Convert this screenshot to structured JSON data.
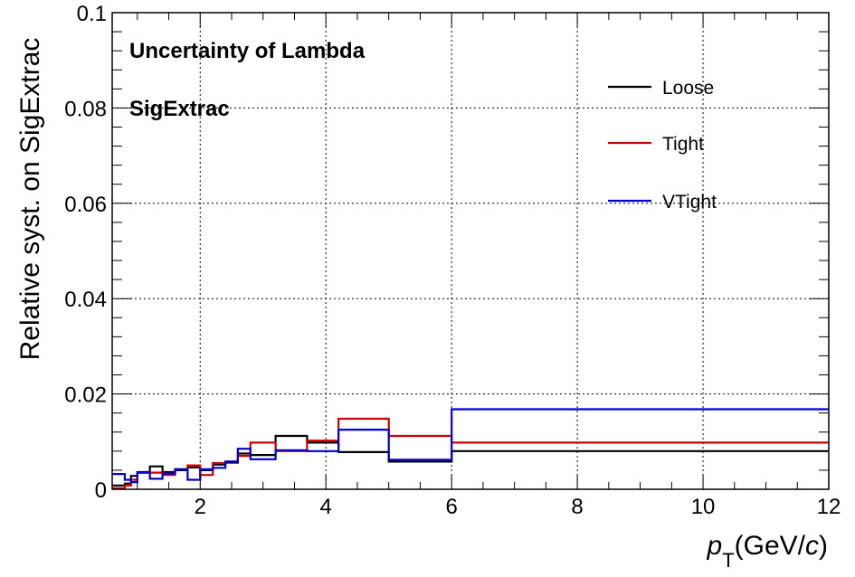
{
  "chart_data": {
    "type": "line",
    "step": true,
    "annotations": [
      "Uncertainty of Lambda",
      "SigExtrac"
    ],
    "xlabel_main": "p",
    "xlabel_sub": "T",
    "xlabel_unit_pre": "(GeV/",
    "xlabel_unit_italic": "c",
    "xlabel_unit_post": ")",
    "ylabel": "Relative syst. on SigExtrac",
    "xlim": [
      0.6,
      12
    ],
    "ylim": [
      0,
      0.1
    ],
    "x_ticks": [
      2,
      4,
      6,
      8,
      10,
      12
    ],
    "x_tick_labels": [
      "2",
      "4",
      "6",
      "8",
      "10",
      "12"
    ],
    "y_ticks": [
      0,
      0.02,
      0.04,
      0.06,
      0.08,
      0.1
    ],
    "y_tick_labels": [
      "0",
      "0.02",
      "0.04",
      "0.06",
      "0.08",
      "0.1"
    ],
    "grid": true,
    "legend_position": "top-right",
    "bin_edges": [
      0.6,
      0.8,
      0.9,
      1.0,
      1.2,
      1.4,
      1.6,
      1.8,
      2.0,
      2.2,
      2.4,
      2.6,
      2.8,
      3.2,
      3.7,
      4.2,
      5.0,
      6.0,
      8.0,
      12.0
    ],
    "series": [
      {
        "name": "Loose",
        "color": "#000000",
        "values": [
          0.0008,
          0.0012,
          0.0028,
          0.0036,
          0.0048,
          0.0036,
          0.004,
          0.0046,
          0.004,
          0.0052,
          0.0056,
          0.0075,
          0.0072,
          0.0112,
          0.0098,
          0.0078,
          0.0058,
          0.008,
          0.008
        ]
      },
      {
        "name": "Tight",
        "color": "#cc0000",
        "values": [
          0.0002,
          0.0008,
          0.002,
          0.0035,
          0.0035,
          0.003,
          0.0042,
          0.005,
          0.003,
          0.0055,
          0.0058,
          0.007,
          0.0098,
          0.008,
          0.0102,
          0.0148,
          0.0112,
          0.0098,
          0.0098
        ]
      },
      {
        "name": "VTight",
        "color": "#0000cc",
        "values": [
          0.0032,
          0.002,
          0.0015,
          0.0035,
          0.0022,
          0.0033,
          0.0042,
          0.002,
          0.0042,
          0.0045,
          0.0058,
          0.0085,
          0.0063,
          0.0082,
          0.008,
          0.0125,
          0.0062,
          0.0168,
          0.0168
        ]
      }
    ]
  }
}
